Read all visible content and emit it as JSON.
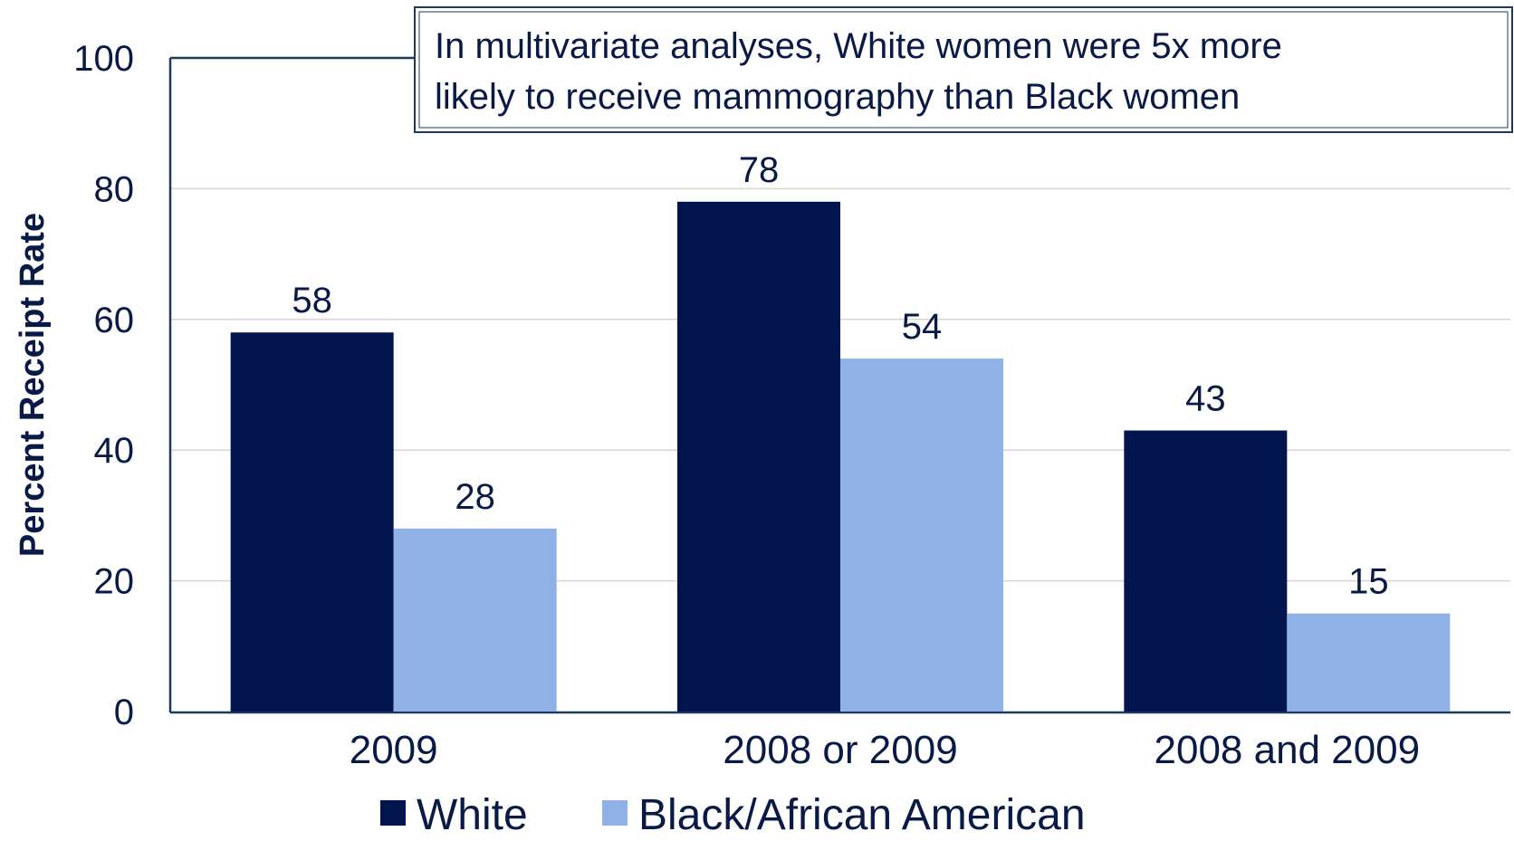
{
  "chart_data": {
    "type": "bar",
    "title": "",
    "xlabel": "",
    "ylabel": "Percent Receipt Rate",
    "ylim": [
      0,
      100
    ],
    "yticks": [
      0,
      20,
      40,
      60,
      80,
      100
    ],
    "categories": [
      "2009",
      "2008 or 2009",
      "2008 and 2009"
    ],
    "series": [
      {
        "name": "White",
        "color": "#02154f",
        "values": [
          58,
          78,
          43
        ]
      },
      {
        "name": "Black/African American",
        "color": "#8fb1e6",
        "values": [
          28,
          54,
          15
        ]
      }
    ],
    "annotation": {
      "lines": [
        "In multivariate analyses, White women were 5x more",
        "likely to receive mammography than Black women"
      ]
    },
    "grid": true,
    "legend": "bottom"
  }
}
